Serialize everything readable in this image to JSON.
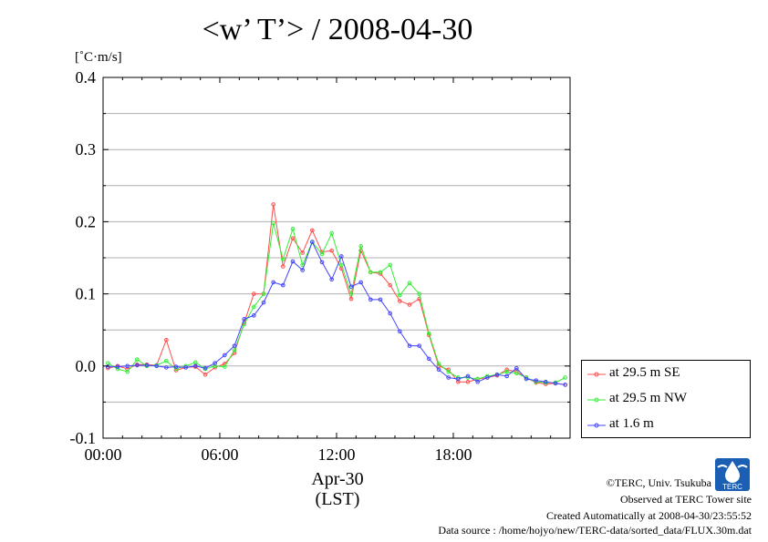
{
  "title": "<w’ T’> / 2008-04-30",
  "unit_label": "[˚C·m/s]",
  "x_axis": {
    "month_label": "Apr-30",
    "tz_label": "(LST)"
  },
  "credits": {
    "copyright": "©TERC, Univ. Tsukuba",
    "site": "Observed at TERC Tower site",
    "created": "Created Automatically at 2008-04-30/23:55:52",
    "source": "Data source : /home/hojyo/new/TERC-data/sorted_data/FLUX.30m.dat"
  },
  "logo": {
    "icon": "terc-logo-icon",
    "text": "TERC"
  },
  "chart_data": {
    "type": "line",
    "x_unit": "hour of day (LST)",
    "xlim": [
      0,
      24
    ],
    "ylim": [
      -0.1,
      0.4
    ],
    "xticks": [
      0,
      6,
      12,
      18
    ],
    "xtick_labels": [
      "00:00",
      "06:00",
      "12:00",
      "18:00"
    ],
    "yticks": [
      -0.1,
      0.0,
      0.1,
      0.2,
      0.3,
      0.4
    ],
    "ytick_labels": [
      "-0.1",
      "0.0",
      "0.1",
      "0.2",
      "0.3",
      "0.4"
    ],
    "grid": "horizontal",
    "legend_position": "right-bottom",
    "x": [
      0.25,
      0.75,
      1.25,
      1.75,
      2.25,
      2.75,
      3.25,
      3.75,
      4.25,
      4.75,
      5.25,
      5.75,
      6.25,
      6.75,
      7.25,
      7.75,
      8.25,
      8.75,
      9.25,
      9.75,
      10.25,
      10.75,
      11.25,
      11.75,
      12.25,
      12.75,
      13.25,
      13.75,
      14.25,
      14.75,
      15.25,
      15.75,
      16.25,
      16.75,
      17.25,
      17.75,
      18.25,
      18.75,
      19.25,
      19.75,
      20.25,
      20.75,
      21.25,
      21.75,
      22.25,
      22.75,
      23.25,
      23.75
    ],
    "series": [
      {
        "name": "at 29.5 m SE",
        "color": "#ff4d4d",
        "values": [
          -0.003,
          0.0,
          -0.004,
          0.002,
          0.002,
          0.001,
          0.036,
          -0.006,
          -0.002,
          -0.001,
          -0.012,
          -0.002,
          0.003,
          0.018,
          0.06,
          0.1,
          0.1,
          0.224,
          0.138,
          0.177,
          0.157,
          0.188,
          0.158,
          0.16,
          0.135,
          0.093,
          0.16,
          0.13,
          0.128,
          0.112,
          0.09,
          0.085,
          0.093,
          0.043,
          0.0,
          -0.005,
          -0.022,
          -0.022,
          -0.018,
          -0.016,
          -0.013,
          -0.005,
          -0.008,
          -0.016,
          -0.023,
          -0.025,
          -0.024,
          -0.026
        ]
      },
      {
        "name": "at 29.5 m NW",
        "color": "#33ee33",
        "values": [
          0.004,
          -0.004,
          -0.008,
          0.009,
          0.0,
          0.001,
          0.007,
          -0.004,
          0.0,
          0.005,
          -0.004,
          0.0,
          -0.001,
          0.022,
          0.058,
          0.082,
          0.1,
          0.198,
          0.148,
          0.19,
          0.14,
          0.172,
          0.155,
          0.184,
          0.14,
          0.1,
          0.166,
          0.13,
          0.13,
          0.14,
          0.098,
          0.115,
          0.1,
          0.045,
          0.003,
          -0.008,
          -0.016,
          -0.016,
          -0.018,
          -0.014,
          -0.012,
          -0.008,
          -0.01,
          -0.016,
          -0.022,
          -0.023,
          -0.023,
          -0.016
        ]
      },
      {
        "name": "at 1.6 m",
        "color": "#4444ff",
        "values": [
          -0.001,
          -0.001,
          0.0,
          0.001,
          0.001,
          0.0,
          -0.002,
          -0.001,
          -0.002,
          0.0,
          -0.003,
          0.004,
          0.015,
          0.028,
          0.065,
          0.07,
          0.088,
          0.116,
          0.112,
          0.145,
          0.133,
          0.172,
          0.144,
          0.12,
          0.152,
          0.11,
          0.116,
          0.092,
          0.092,
          0.073,
          0.048,
          0.028,
          0.028,
          0.01,
          -0.005,
          -0.016,
          -0.018,
          -0.014,
          -0.022,
          -0.016,
          -0.012,
          -0.014,
          -0.003,
          -0.018,
          -0.02,
          -0.022,
          -0.024,
          -0.026
        ]
      }
    ]
  }
}
